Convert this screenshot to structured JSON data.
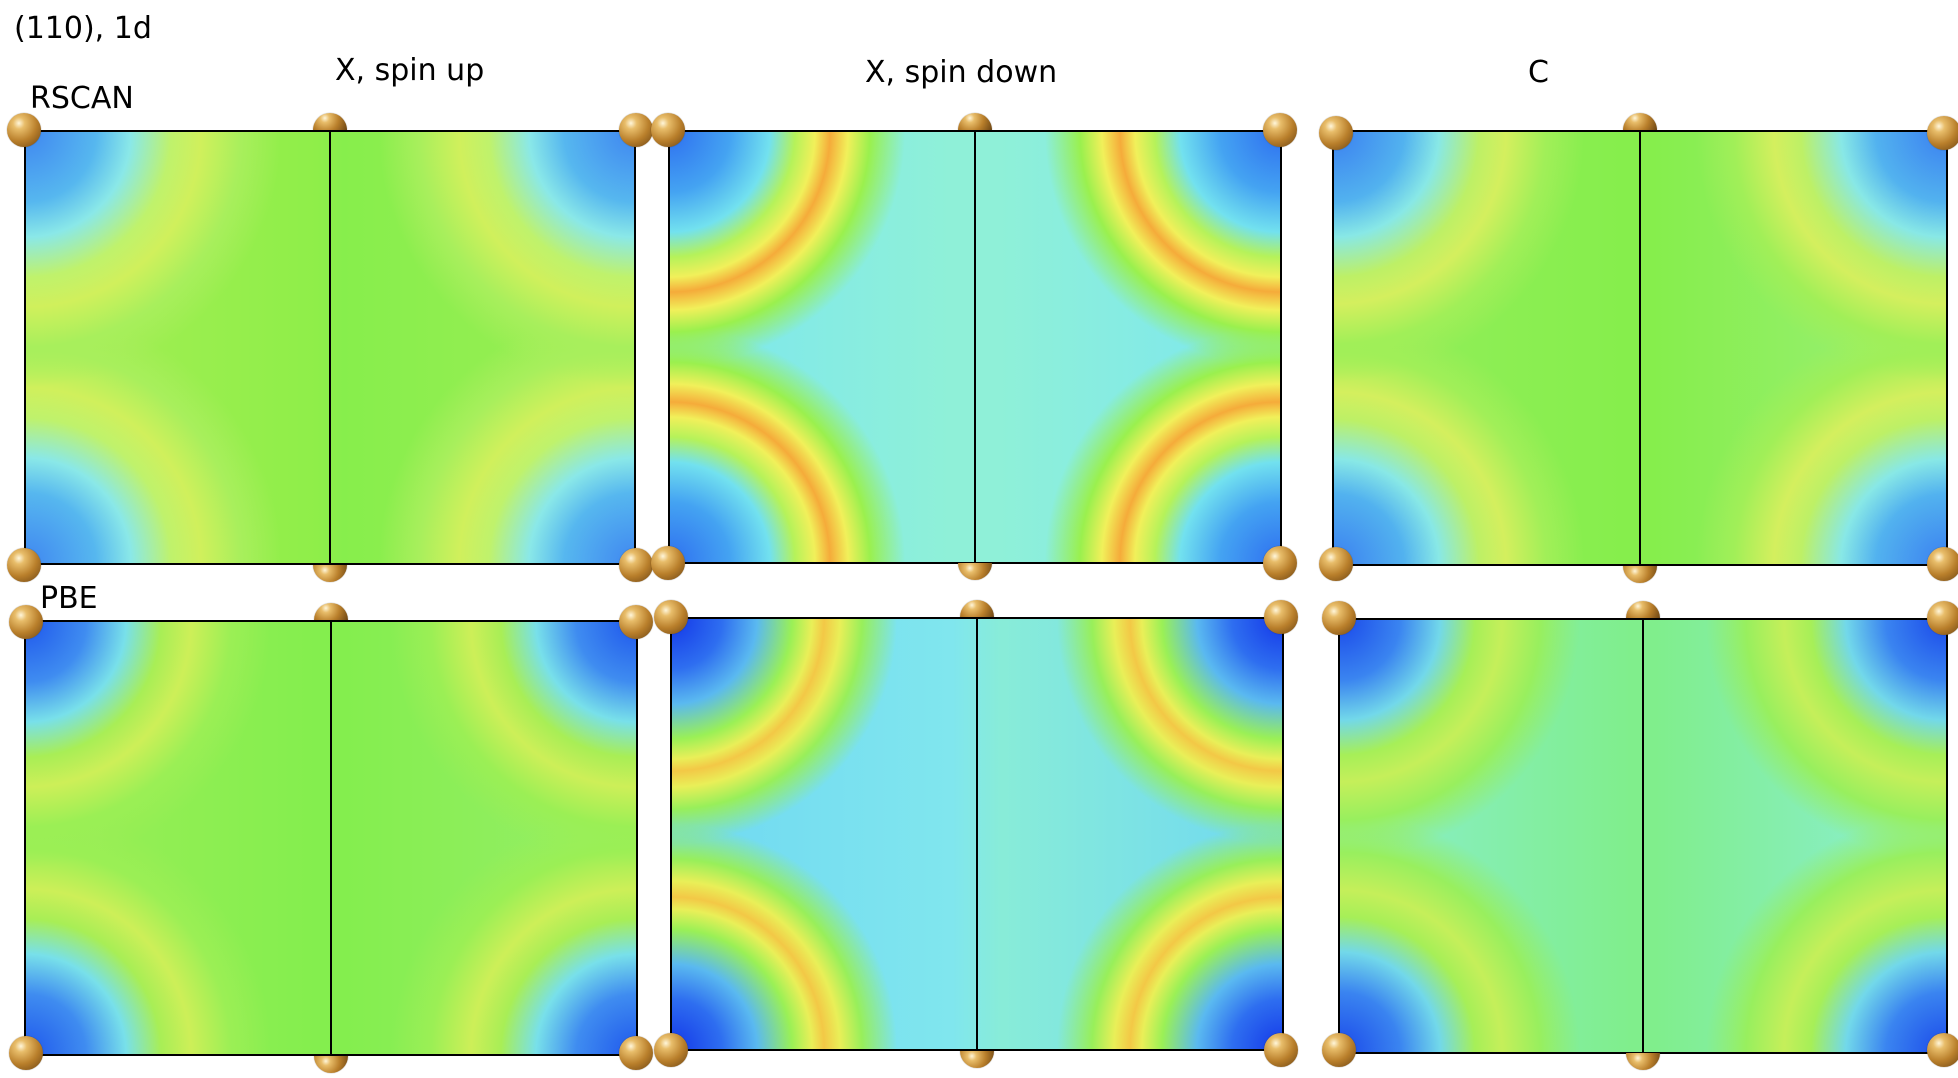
{
  "figure_title": "(110), 1d",
  "columns": {
    "spin_up": "X, spin up",
    "spin_down": "X, spin down",
    "correlation": "C"
  },
  "rows": {
    "top": "RSCAN",
    "bottom": "PBE"
  },
  "panels": [
    {
      "row": "RSCAN",
      "column": "X, spin up"
    },
    {
      "row": "RSCAN",
      "column": "X, spin down"
    },
    {
      "row": "RSCAN",
      "column": "C"
    },
    {
      "row": "PBE",
      "column": "X, spin up"
    },
    {
      "row": "PBE",
      "column": "X, spin down"
    },
    {
      "row": "PBE",
      "column": "C"
    }
  ],
  "colors": {
    "deep_blue": "#1136e8",
    "blue": "#3f86f1",
    "cyan": "#77ecef",
    "green": "#8ff04f",
    "yellow": "#f3f35a",
    "orange": "#f5a83a",
    "atom": "#c68c35",
    "border": "#000000"
  }
}
